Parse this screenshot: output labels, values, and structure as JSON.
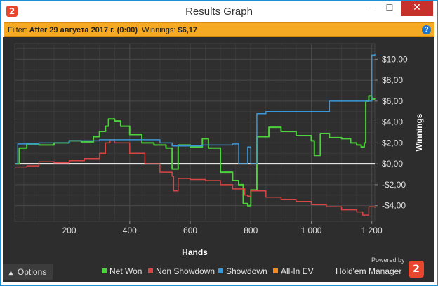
{
  "window": {
    "title": "Results Graph",
    "app_icon": "2",
    "controls": {
      "minimize": "—",
      "maximize": "☐",
      "close": "✕"
    }
  },
  "filter": {
    "label": "Filter:",
    "value": "After 29 августа 2017 г. (0:00)",
    "winnings_label": "Winnings:",
    "winnings_value": "$6,17",
    "help_icon": "?"
  },
  "footer": {
    "options_label": "Options",
    "options_icon": "chevron-up-icon",
    "powered_by": "Powered by",
    "brand": "Hold'em Manager",
    "brand_logo": "2"
  },
  "colors": {
    "net_won": "#4cd23a",
    "non_showdown": "#d84545",
    "showdown": "#3a98d8",
    "all_in_ev": "#f08a24",
    "zero_line": "#ffffff",
    "background": "#2d2d2d",
    "filter_bar": "#f6a923"
  },
  "chart_data": {
    "type": "line",
    "xlabel": "Hands",
    "ylabel": "Winnings",
    "xlim": [
      20,
      1210
    ],
    "ylim": [
      -5.5,
      11.5
    ],
    "x_ticks": [
      200,
      400,
      600,
      800,
      1000,
      1200
    ],
    "x_tick_labels": [
      "200",
      "400",
      "600",
      "800",
      "1 000",
      "1 200"
    ],
    "y_ticks": [
      10,
      8,
      6,
      4,
      2,
      0,
      -2,
      -4
    ],
    "y_tick_labels": [
      "$10,00",
      "$8,00",
      "$6,00",
      "$4,00",
      "$2,00",
      "$0,00",
      "-$2,00",
      "-$4,00"
    ],
    "grid": true,
    "legend_position": "bottom-right",
    "series": [
      {
        "name": "Net Won",
        "color": "#4cd23a",
        "x": [
          20,
          35,
          60,
          100,
          150,
          200,
          240,
          280,
          300,
          320,
          330,
          350,
          370,
          400,
          440,
          480,
          520,
          540,
          560,
          600,
          640,
          660,
          700,
          740,
          760,
          775,
          790,
          800,
          820,
          860,
          900,
          950,
          1000,
          1010,
          1030,
          1060,
          1100,
          1130,
          1150,
          1165,
          1175,
          1180,
          1190,
          1200,
          1210
        ],
        "y": [
          0.0,
          1.5,
          1.9,
          1.8,
          2.0,
          2.2,
          2.1,
          2.6,
          3.1,
          3.6,
          4.3,
          4.1,
          3.6,
          2.8,
          2.0,
          1.8,
          1.5,
          -0.5,
          1.8,
          1.6,
          2.4,
          1.5,
          -0.8,
          -1.6,
          -2.0,
          -3.8,
          -4.0,
          -2.5,
          2.6,
          3.5,
          3.1,
          2.7,
          2.2,
          0.8,
          2.9,
          2.5,
          2.4,
          2.0,
          1.8,
          1.6,
          2.0,
          6.0,
          6.5,
          6.2,
          6.17
        ]
      },
      {
        "name": "Non Showdown",
        "color": "#d84545",
        "x": [
          20,
          60,
          100,
          150,
          200,
          250,
          300,
          320,
          335,
          350,
          400,
          450,
          500,
          540,
          545,
          560,
          600,
          650,
          700,
          740,
          780,
          790,
          800,
          850,
          900,
          950,
          1000,
          1050,
          1100,
          1150,
          1170,
          1190,
          1210
        ],
        "y": [
          -0.3,
          -0.2,
          0.2,
          0.1,
          0.3,
          0.5,
          1.0,
          2.0,
          2.3,
          2.0,
          1.0,
          0.0,
          -0.8,
          -1.2,
          -2.6,
          -1.4,
          -1.5,
          -1.6,
          -2.0,
          -2.4,
          -3.0,
          -3.1,
          -2.6,
          -3.2,
          -3.4,
          -3.6,
          -3.9,
          -4.1,
          -4.4,
          -4.6,
          -4.9,
          -4.1,
          -4.2
        ]
      },
      {
        "name": "Showdown",
        "color": "#3a98d8",
        "x": [
          20,
          30,
          100,
          200,
          300,
          400,
          500,
          540,
          560,
          640,
          660,
          700,
          740,
          760,
          790,
          800,
          820,
          850,
          900,
          950,
          1000,
          1040,
          1060,
          1100,
          1150,
          1190,
          1200,
          1210
        ],
        "y": [
          0.0,
          1.9,
          2.0,
          2.2,
          2.3,
          2.3,
          2.0,
          1.7,
          1.7,
          1.8,
          1.8,
          1.8,
          1.9,
          0.0,
          1.6,
          0.0,
          4.8,
          5.0,
          5.0,
          5.0,
          5.0,
          5.0,
          6.0,
          6.0,
          6.0,
          6.0,
          10.4,
          10.5
        ]
      },
      {
        "name": "All-In EV",
        "color": "#f08a24",
        "x": [],
        "y": []
      }
    ]
  }
}
